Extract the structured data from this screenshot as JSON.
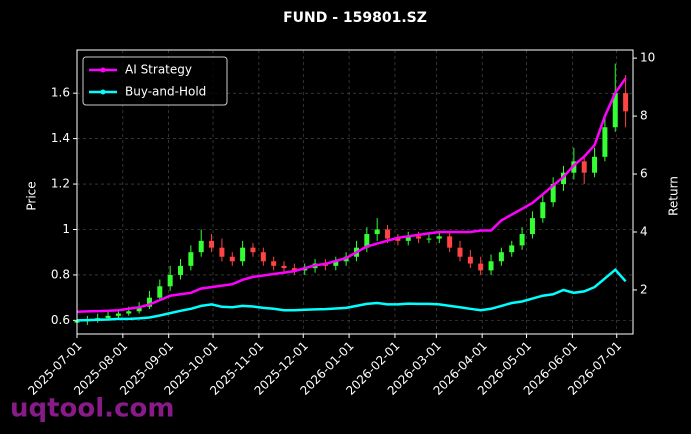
{
  "chart_data": {
    "type": "candlestick",
    "title": "FUND - 159801.SZ",
    "ylabel": "Price",
    "y2label": "Return",
    "watermark": "uqtool.com",
    "x": [
      "2025-07-01",
      "2025-07-08",
      "2025-07-15",
      "2025-07-22",
      "2025-07-29",
      "2025-08-05",
      "2025-08-12",
      "2025-08-19",
      "2025-08-26",
      "2025-09-02",
      "2025-09-09",
      "2025-09-16",
      "2025-09-23",
      "2025-09-30",
      "2025-10-07",
      "2025-10-14",
      "2025-10-21",
      "2025-10-28",
      "2025-11-04",
      "2025-11-11",
      "2025-11-18",
      "2025-11-25",
      "2025-12-02",
      "2025-12-09",
      "2025-12-16",
      "2025-12-23",
      "2025-12-30",
      "2026-01-06",
      "2026-01-13",
      "2026-01-20",
      "2026-01-27",
      "2026-02-03",
      "2026-02-10",
      "2026-02-17",
      "2026-02-24",
      "2026-03-03",
      "2026-03-10",
      "2026-03-17",
      "2026-03-24",
      "2026-03-31",
      "2026-04-07",
      "2026-04-14",
      "2026-04-21",
      "2026-04-28",
      "2026-05-05",
      "2026-05-12",
      "2026-05-19",
      "2026-05-26",
      "2026-06-02",
      "2026-06-09",
      "2026-06-16",
      "2026-06-23",
      "2026-06-30",
      "2026-07-07"
    ],
    "open": [
      0.59,
      0.6,
      0.6,
      0.61,
      0.62,
      0.63,
      0.64,
      0.66,
      0.7,
      0.75,
      0.8,
      0.84,
      0.9,
      0.95,
      0.92,
      0.88,
      0.86,
      0.92,
      0.9,
      0.86,
      0.84,
      0.83,
      0.82,
      0.83,
      0.85,
      0.84,
      0.86,
      0.88,
      0.92,
      0.98,
      1.0,
      0.96,
      0.95,
      0.97,
      0.96,
      0.96,
      0.97,
      0.92,
      0.88,
      0.85,
      0.82,
      0.86,
      0.9,
      0.93,
      0.98,
      1.05,
      1.12,
      1.2,
      1.25,
      1.3,
      1.25,
      1.32,
      1.45,
      1.6
    ],
    "high": [
      0.62,
      0.62,
      0.63,
      0.64,
      0.65,
      0.66,
      0.68,
      0.73,
      0.78,
      0.84,
      0.87,
      0.93,
      1.0,
      0.98,
      0.96,
      0.9,
      0.95,
      0.94,
      0.92,
      0.88,
      0.86,
      0.85,
      0.85,
      0.87,
      0.87,
      0.88,
      0.9,
      0.95,
      1.01,
      1.05,
      1.02,
      0.98,
      0.99,
      0.99,
      0.98,
      0.99,
      0.99,
      0.95,
      0.91,
      0.88,
      0.89,
      0.92,
      0.95,
      1.01,
      1.08,
      1.15,
      1.23,
      1.28,
      1.36,
      1.33,
      1.36,
      1.5,
      1.73,
      1.68
    ],
    "low": [
      0.58,
      0.58,
      0.59,
      0.6,
      0.61,
      0.62,
      0.63,
      0.65,
      0.69,
      0.73,
      0.78,
      0.82,
      0.88,
      0.9,
      0.86,
      0.84,
      0.84,
      0.88,
      0.84,
      0.82,
      0.81,
      0.8,
      0.8,
      0.81,
      0.82,
      0.82,
      0.84,
      0.86,
      0.9,
      0.95,
      0.94,
      0.93,
      0.93,
      0.94,
      0.94,
      0.94,
      0.9,
      0.86,
      0.83,
      0.8,
      0.8,
      0.84,
      0.88,
      0.91,
      0.96,
      1.03,
      1.1,
      1.17,
      1.22,
      1.2,
      1.23,
      1.3,
      1.43,
      1.45
    ],
    "close": [
      0.6,
      0.6,
      0.61,
      0.62,
      0.63,
      0.64,
      0.66,
      0.7,
      0.75,
      0.8,
      0.84,
      0.9,
      0.95,
      0.92,
      0.88,
      0.86,
      0.92,
      0.9,
      0.86,
      0.84,
      0.83,
      0.82,
      0.83,
      0.85,
      0.84,
      0.86,
      0.88,
      0.92,
      0.98,
      1.0,
      0.96,
      0.95,
      0.97,
      0.96,
      0.96,
      0.97,
      0.92,
      0.88,
      0.85,
      0.82,
      0.86,
      0.9,
      0.93,
      0.98,
      1.05,
      1.12,
      1.2,
      1.25,
      1.3,
      1.25,
      1.32,
      1.45,
      1.6,
      1.52
    ],
    "up_color": "#33ff33",
    "down_color": "#ff4444",
    "series": [
      {
        "name": "AI Strategy",
        "color": "#ff00ff",
        "type": "line",
        "axis": "y2",
        "values": [
          1.25,
          1.26,
          1.27,
          1.28,
          1.3,
          1.35,
          1.4,
          1.5,
          1.65,
          1.8,
          1.85,
          1.9,
          2.05,
          2.1,
          2.15,
          2.2,
          2.35,
          2.45,
          2.5,
          2.55,
          2.6,
          2.65,
          2.75,
          2.85,
          2.9,
          3.0,
          3.1,
          3.3,
          3.5,
          3.6,
          3.7,
          3.8,
          3.85,
          3.9,
          3.95,
          4.0,
          4.0,
          4.0,
          4.0,
          4.05,
          4.05,
          4.4,
          4.6,
          4.8,
          5.0,
          5.3,
          5.6,
          5.9,
          6.3,
          6.6,
          7.0,
          8.0,
          8.8,
          9.3
        ]
      },
      {
        "name": "Buy-and-Hold",
        "color": "#00ffff",
        "type": "line",
        "axis": "y2",
        "values": [
          0.95,
          0.96,
          0.97,
          0.98,
          1.0,
          1.0,
          1.02,
          1.05,
          1.12,
          1.2,
          1.28,
          1.35,
          1.45,
          1.5,
          1.42,
          1.4,
          1.45,
          1.43,
          1.38,
          1.35,
          1.3,
          1.3,
          1.32,
          1.33,
          1.34,
          1.36,
          1.38,
          1.45,
          1.52,
          1.55,
          1.5,
          1.5,
          1.53,
          1.52,
          1.52,
          1.5,
          1.45,
          1.4,
          1.35,
          1.3,
          1.35,
          1.45,
          1.55,
          1.6,
          1.7,
          1.8,
          1.85,
          2.0,
          1.9,
          1.95,
          2.1,
          2.4,
          2.7,
          2.3
        ]
      }
    ],
    "xlim": [
      "2025-07-01",
      "2026-07-12"
    ],
    "xticks": [
      "2025-07-01",
      "2025-08-01",
      "2025-09-01",
      "2025-10-01",
      "2025-11-01",
      "2025-12-01",
      "2026-01-01",
      "2026-02-01",
      "2026-03-01",
      "2026-04-01",
      "2026-05-01",
      "2026-06-01",
      "2026-07-01"
    ],
    "ylim": [
      0.54,
      1.79
    ],
    "yticks": [
      0.6,
      0.8,
      1.0,
      1.2,
      1.4,
      1.6
    ],
    "y2lim": [
      0.48,
      10.28
    ],
    "y2ticks": [
      2,
      4,
      6,
      8,
      10
    ],
    "grid": true,
    "legend": "upper left"
  }
}
